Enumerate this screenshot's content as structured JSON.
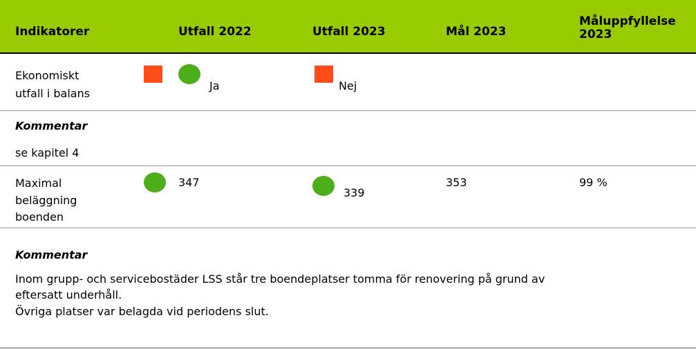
{
  "table": {
    "header": [
      "Indikatorer",
      "Utfall 2022",
      "Utfall 2023",
      "Mål 2023",
      "Måluppfyllelse 2023"
    ],
    "rows": [
      {
        "indicator": [
          "Ekonomiskt",
          "utfall i balans"
        ],
        "utfall_2022": "Ja",
        "utfall_2023": "Nej"
      },
      {
        "comment_title": "Kommentar",
        "comment": [
          "se kapitel 4"
        ]
      },
      {
        "indicator": [
          "Maximal",
          "beläggning",
          "boenden"
        ],
        "utfall_2022": 347,
        "utfall_2023": 339,
        "mal_2023": 353,
        "maluppfyllelse": "99 %"
      },
      {
        "comment_title": "Kommentar",
        "comment": [
          "Inom grupp- och servicebostäder LSS står tre boendeplatser tomma för renovering på grund av",
          "eftersatt underhåll.",
          "Övriga platser var belagda vid periodens slut."
        ]
      }
    ]
  }
}
